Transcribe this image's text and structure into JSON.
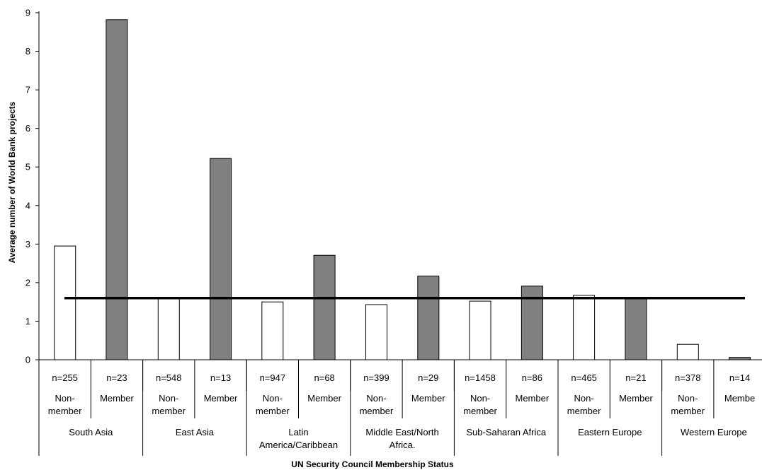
{
  "chart_data": {
    "type": "bar",
    "title": "",
    "xlabel": "UN Security Council Membership Status",
    "ylabel": "Average number of World Bank projects",
    "ylim": [
      0,
      9
    ],
    "yticks": [
      "0",
      "1",
      "2",
      "3",
      "4",
      "5",
      "6",
      "7",
      "8",
      "9"
    ],
    "grid": false,
    "legend": "none",
    "colors": {
      "non_member": "#ffffff",
      "member": "#808080",
      "edge": "#000000",
      "reference_line": "#000000"
    },
    "reference_line": 1.6,
    "regions": [
      {
        "label_lines": [
          "South Asia"
        ]
      },
      {
        "label_lines": [
          "East Asia"
        ]
      },
      {
        "label_lines": [
          "Latin",
          "America/Caribbean"
        ]
      },
      {
        "label_lines": [
          "Middle East/North",
          "Africa."
        ]
      },
      {
        "label_lines": [
          "Sub-Saharan Africa"
        ]
      },
      {
        "label_lines": [
          "Eastern Europe"
        ]
      },
      {
        "label_lines": [
          "Western Europe"
        ]
      }
    ],
    "bars": [
      {
        "region": 0,
        "status": "non_member",
        "n": "n=255",
        "status_lines": [
          "Non-",
          "member"
        ],
        "value": 2.95
      },
      {
        "region": 0,
        "status": "member",
        "n": "n=23",
        "status_lines": [
          "Member"
        ],
        "value": 8.82
      },
      {
        "region": 1,
        "status": "non_member",
        "n": "n=548",
        "status_lines": [
          "Non-",
          "member"
        ],
        "value": 1.58
      },
      {
        "region": 1,
        "status": "member",
        "n": "n=13",
        "status_lines": [
          "Member"
        ],
        "value": 5.22
      },
      {
        "region": 2,
        "status": "non_member",
        "n": "n=947",
        "status_lines": [
          "Non-",
          "member"
        ],
        "value": 1.5
      },
      {
        "region": 2,
        "status": "member",
        "n": "n=68",
        "status_lines": [
          "Member"
        ],
        "value": 2.71
      },
      {
        "region": 3,
        "status": "non_member",
        "n": "n=399",
        "status_lines": [
          "Non-",
          "member"
        ],
        "value": 1.43
      },
      {
        "region": 3,
        "status": "member",
        "n": "n=29",
        "status_lines": [
          "Member"
        ],
        "value": 2.17
      },
      {
        "region": 4,
        "status": "non_member",
        "n": "n=1458",
        "status_lines": [
          "Non-",
          "member"
        ],
        "value": 1.52
      },
      {
        "region": 4,
        "status": "member",
        "n": "n=86",
        "status_lines": [
          "Member"
        ],
        "value": 1.91
      },
      {
        "region": 5,
        "status": "non_member",
        "n": "n=465",
        "status_lines": [
          "Non-",
          "member"
        ],
        "value": 1.67
      },
      {
        "region": 5,
        "status": "member",
        "n": "n=21",
        "status_lines": [
          "Member"
        ],
        "value": 1.62
      },
      {
        "region": 6,
        "status": "non_member",
        "n": "n=378",
        "status_lines": [
          "Non-",
          "member"
        ],
        "value": 0.4
      },
      {
        "region": 6,
        "status": "member",
        "n": "n=14",
        "status_lines": [
          "Membe"
        ],
        "value": 0.06
      }
    ]
  }
}
